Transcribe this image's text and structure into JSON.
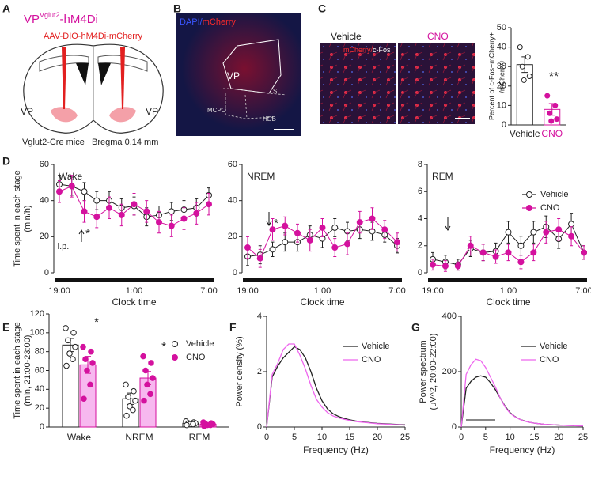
{
  "panels": {
    "labels": [
      "A",
      "B",
      "C",
      "D",
      "E",
      "F",
      "G"
    ]
  },
  "schematic": {
    "title_main": "VP",
    "title_sup": "Vglut2",
    "title_rest": "-hM4Di",
    "virus": "AAV-DIO-hM4Di-mCherry",
    "left_region": "VP",
    "right_region": "VP",
    "mouse": "Vglut2-Cre mice",
    "bregma": "Bregma 0.14 mm"
  },
  "histology": {
    "stain_1": "DAPI/",
    "stain_2": "mCherry",
    "regions": [
      "VP",
      "SI",
      "MCPO",
      "HDB"
    ]
  },
  "micrographs": {
    "conditions": [
      "Vehicle",
      "CNO"
    ],
    "stain_1": "mCherry/",
    "stain_2": "c-Fos"
  },
  "chart_data": [
    {
      "type": "bar",
      "categories": [
        "Vehicle",
        "CNO"
      ],
      "category_colors": [
        "#222222",
        "#d4119e"
      ],
      "values": [
        31,
        8
      ],
      "errors": [
        4,
        3
      ],
      "points": [
        [
          40,
          35,
          30,
          25,
          23
        ],
        [
          15,
          10,
          6,
          3,
          2
        ]
      ],
      "ylim": [
        0,
        50
      ],
      "yticks": [
        0,
        10,
        20,
        30,
        40,
        50
      ],
      "ylabel": [
        "Percent of c-Fos+mCherry+",
        "/mCherry+"
      ],
      "annotations": [
        "**"
      ]
    },
    {
      "type": "line",
      "title": "Wake",
      "categories": [
        "19:00",
        null,
        null,
        null,
        null,
        null,
        "1:00",
        null,
        null,
        null,
        null,
        null,
        "7:00"
      ],
      "series": [
        {
          "name": "Vehicle",
          "color": "#222222",
          "marker": "open",
          "values": [
            49,
            48,
            45,
            40,
            40,
            36,
            37,
            31,
            32,
            34,
            35,
            36,
            43
          ],
          "errors": [
            5,
            5,
            5,
            5,
            5,
            5,
            5,
            5,
            5,
            5,
            5,
            5,
            4
          ]
        },
        {
          "name": "CNO",
          "color": "#d4119e",
          "marker": "filled",
          "values": [
            45,
            48,
            34,
            31,
            36,
            32,
            38,
            34,
            28,
            26,
            30,
            33,
            38
          ],
          "errors": [
            6,
            6,
            6,
            6,
            6,
            6,
            6,
            6,
            6,
            6,
            6,
            6,
            6
          ]
        }
      ],
      "ylim": [
        0,
        60
      ],
      "yticks": [
        0,
        20,
        40,
        60
      ],
      "xlabel": "Clock time",
      "ylabel": [
        "Time spent in each stage",
        "(min/h)"
      ],
      "annotations": [
        "*",
        "i.p."
      ]
    },
    {
      "type": "line",
      "title": "NREM",
      "categories": [
        "19:00",
        null,
        null,
        null,
        null,
        null,
        "1:00",
        null,
        null,
        null,
        null,
        null,
        "7:00"
      ],
      "series": [
        {
          "name": "Vehicle",
          "color": "#222222",
          "marker": "open",
          "values": [
            9,
            10,
            13,
            17,
            17,
            21,
            19,
            25,
            23,
            24,
            23,
            21,
            15
          ],
          "errors": [
            5,
            5,
            4,
            5,
            5,
            5,
            5,
            5,
            5,
            5,
            5,
            4,
            4
          ]
        },
        {
          "name": "CNO",
          "color": "#d4119e",
          "marker": "filled",
          "values": [
            14,
            8,
            24,
            26,
            22,
            18,
            25,
            14,
            16,
            28,
            30,
            24,
            17
          ],
          "errors": [
            6,
            5,
            6,
            5,
            5,
            6,
            5,
            5,
            6,
            6,
            6,
            5,
            5
          ]
        }
      ],
      "ylim": [
        0,
        60
      ],
      "yticks": [
        0,
        20,
        40,
        60
      ],
      "xlabel": "Clock time",
      "annotations": [
        "*"
      ]
    },
    {
      "type": "line",
      "title": "REM",
      "categories": [
        "19:00",
        null,
        null,
        null,
        null,
        null,
        "1:00",
        null,
        null,
        null,
        null,
        null,
        "7:00"
      ],
      "series": [
        {
          "name": "Vehicle",
          "color": "#222222",
          "marker": "open",
          "values": [
            1,
            0.8,
            0.6,
            1.8,
            1.5,
            1.6,
            3,
            2,
            3,
            3.4,
            2.5,
            3.6,
            1.5
          ],
          "errors": [
            0.5,
            0.5,
            0.4,
            0.6,
            0.6,
            0.6,
            0.8,
            0.7,
            0.8,
            0.8,
            0.7,
            0.8,
            0.5
          ]
        },
        {
          "name": "CNO",
          "color": "#d4119e",
          "marker": "filled",
          "values": [
            0.6,
            0.5,
            0.5,
            2,
            1.5,
            1.2,
            1.5,
            0.8,
            1.5,
            3,
            3.2,
            2.7,
            1.5
          ],
          "errors": [
            0.4,
            0.4,
            0.3,
            0.7,
            0.6,
            0.5,
            0.6,
            0.5,
            0.6,
            0.8,
            0.8,
            0.7,
            0.5
          ]
        }
      ],
      "ylim": [
        0,
        8
      ],
      "yticks": [
        0,
        2,
        4,
        6,
        8
      ],
      "xlabel": "Clock time",
      "legend": "upper right"
    },
    {
      "type": "grouped_bar",
      "categories": [
        "Wake",
        "NREM",
        "REM"
      ],
      "series": [
        {
          "name": "Vehicle",
          "color": "#222222",
          "fill": "#ffffff",
          "marker": "open",
          "values": [
            87,
            30,
            4
          ],
          "errors": [
            7,
            6,
            1
          ],
          "points": [
            [
              105,
              100,
              92,
              85,
              78,
              72,
              65
            ],
            [
              45,
              38,
              32,
              28,
              22,
              18,
              12
            ],
            [
              6,
              5,
              4,
              4,
              3,
              3,
              2
            ]
          ]
        },
        {
          "name": "CNO",
          "color": "#d4119e",
          "fill": "#f7b8ef",
          "marker": "filled",
          "values": [
            66,
            52,
            3
          ],
          "errors": [
            9,
            7,
            0.8
          ],
          "points": [
            [
              85,
              80,
              72,
              68,
              60,
              45,
              30
            ],
            [
              75,
              68,
              60,
              52,
              45,
              35,
              28
            ],
            [
              5,
              4,
              3,
              3,
              2,
              2,
              1
            ]
          ]
        }
      ],
      "ylim": [
        0,
        120
      ],
      "yticks": [
        0,
        20,
        40,
        60,
        80,
        100,
        120
      ],
      "ylabel": [
        "Time spent in each stage",
        "(min, 21:00-23:00)"
      ],
      "annotations": [
        "*",
        "*"
      ],
      "legend": "upper right"
    },
    {
      "type": "line_xy",
      "x": [
        0,
        1,
        2,
        3,
        4,
        5,
        6,
        7,
        8,
        9,
        10,
        11,
        12,
        13,
        14,
        15,
        16,
        17,
        18,
        19,
        20,
        21,
        22,
        23,
        24,
        25
      ],
      "series": [
        {
          "name": "Vehicle",
          "color": "#222222",
          "values": [
            0,
            1.8,
            2.2,
            2.5,
            2.7,
            2.9,
            2.8,
            2.5,
            2.0,
            1.4,
            0.95,
            0.65,
            0.48,
            0.38,
            0.31,
            0.26,
            0.22,
            0.19,
            0.17,
            0.15,
            0.13,
            0.12,
            0.11,
            0.1,
            0.09,
            0.08
          ]
        },
        {
          "name": "CNO",
          "color": "#ee66ee",
          "values": [
            0,
            1.9,
            2.3,
            2.8,
            3.0,
            3.0,
            2.6,
            2.1,
            1.5,
            1.0,
            0.72,
            0.52,
            0.4,
            0.33,
            0.28,
            0.24,
            0.2,
            0.18,
            0.16,
            0.14,
            0.12,
            0.11,
            0.1,
            0.09,
            0.08,
            0.07
          ]
        }
      ],
      "xlim": [
        0,
        25
      ],
      "xticks": [
        0,
        5,
        10,
        15,
        20,
        25
      ],
      "ylim": [
        0,
        4
      ],
      "yticks": [
        0,
        2,
        4
      ],
      "xlabel": "Frequency (Hz)",
      "ylabel": [
        "Power density (%)"
      ],
      "legend": "upper right"
    },
    {
      "type": "line_xy",
      "x": [
        0,
        1,
        2,
        3,
        4,
        5,
        6,
        7,
        8,
        9,
        10,
        11,
        12,
        13,
        14,
        15,
        16,
        17,
        18,
        19,
        20,
        21,
        22,
        23,
        24,
        25
      ],
      "series": [
        {
          "name": "Vehicle",
          "color": "#222222",
          "values": [
            0,
            140,
            165,
            180,
            185,
            180,
            160,
            135,
            105,
            75,
            52,
            38,
            28,
            22,
            17,
            14,
            12,
            10,
            9,
            8,
            7,
            6,
            6,
            5,
            5,
            4
          ]
        },
        {
          "name": "CNO",
          "color": "#ee66ee",
          "values": [
            0,
            190,
            225,
            245,
            240,
            215,
            180,
            145,
            105,
            72,
            50,
            37,
            28,
            21,
            17,
            14,
            12,
            10,
            9,
            8,
            7,
            6,
            5,
            5,
            4,
            4
          ]
        }
      ],
      "xlim": [
        0,
        25
      ],
      "xticks": [
        0,
        5,
        10,
        15,
        20,
        25
      ],
      "ylim": [
        0,
        400
      ],
      "yticks": [
        0,
        200,
        400
      ],
      "xlabel": "Frequency (Hz)",
      "ylabel": [
        "Power spectrum",
        "(uV^2, 20:00-22:00)"
      ],
      "legend": "upper right"
    }
  ]
}
